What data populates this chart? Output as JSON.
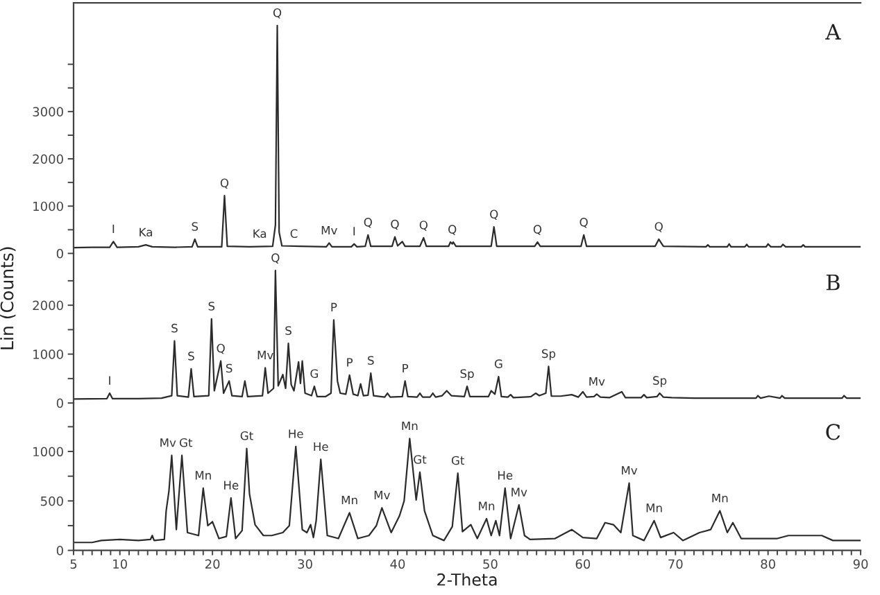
{
  "chart_data": [
    {
      "type": "line",
      "title": "A",
      "tick_labels": "y",
      "xlim": [
        5,
        90
      ],
      "ylim": [
        0,
        5300
      ],
      "yticks": [
        0,
        {
          "value": 500,
          "label": null
        },
        1000,
        {
          "value": 1500,
          "label": null
        },
        2000,
        {
          "value": 2500,
          "label": null
        },
        3000,
        {
          "value": 3500,
          "label": null
        },
        {
          "value": 4000,
          "label": null
        }
      ],
      "x": [
        5.0,
        7.0,
        8.9,
        9.3,
        9.7,
        12.0,
        12.8,
        13.5,
        16.0,
        17.8,
        18.1,
        18.4,
        20.0,
        21.0,
        21.3,
        21.6,
        24.0,
        26.5,
        26.8,
        27.0,
        27.2,
        27.5,
        29.5,
        32.3,
        32.6,
        32.9,
        35.0,
        35.3,
        35.6,
        36.5,
        36.8,
        37.1,
        39.4,
        39.7,
        40.0,
        40.5,
        40.8,
        42.4,
        42.8,
        43.1,
        45.5,
        45.7,
        45.9,
        46.0,
        46.3,
        50.1,
        50.4,
        50.7,
        54.8,
        55.1,
        55.4,
        59.8,
        60.1,
        60.4,
        67.8,
        68.1,
        68.2,
        68.4,
        68.7,
        73.3,
        73.5,
        73.7,
        75.6,
        75.8,
        76.0,
        77.5,
        77.7,
        77.9,
        79.8,
        80.0,
        80.3,
        81.4,
        81.6,
        81.9,
        83.6,
        83.8,
        84.0,
        90.0
      ],
      "series": [
        {
          "color": "#2b2b2b",
          "values": [
            120,
            130,
            130,
            250,
            130,
            140,
            180,
            140,
            130,
            140,
            300,
            140,
            140,
            140,
            1220,
            150,
            140,
            150,
            600,
            4820,
            450,
            160,
            150,
            140,
            220,
            140,
            140,
            200,
            140,
            150,
            390,
            150,
            150,
            350,
            160,
            250,
            150,
            150,
            330,
            150,
            150,
            240,
            200,
            240,
            150,
            150,
            560,
            150,
            150,
            240,
            150,
            150,
            390,
            150,
            150,
            260,
            300,
            240,
            150,
            140,
            180,
            140,
            140,
            200,
            140,
            140,
            190,
            140,
            140,
            200,
            140,
            140,
            190,
            140,
            140,
            180,
            140,
            140
          ]
        }
      ],
      "annotations": [
        {
          "text": "I",
          "x": 9.3,
          "y": 250
        },
        {
          "text": "Ka",
          "x": 12.8,
          "y": 180
        },
        {
          "text": "S",
          "x": 18.1,
          "y": 300
        },
        {
          "text": "Q",
          "x": 21.3,
          "y": 1220
        },
        {
          "text": "Ka",
          "x": 25.1,
          "y": 150
        },
        {
          "text": "Q",
          "x": 27.0,
          "y": 4820
        },
        {
          "text": "C",
          "x": 28.8,
          "y": 150
        },
        {
          "text": "Mv",
          "x": 32.6,
          "y": 220
        },
        {
          "text": "I",
          "x": 35.3,
          "y": 200
        },
        {
          "text": "Q",
          "x": 36.8,
          "y": 390
        },
        {
          "text": "Q",
          "x": 39.7,
          "y": 350
        },
        {
          "text": "Q",
          "x": 42.8,
          "y": 330
        },
        {
          "text": "Q",
          "x": 45.9,
          "y": 240
        },
        {
          "text": "Q",
          "x": 50.4,
          "y": 560
        },
        {
          "text": "Q",
          "x": 55.1,
          "y": 240
        },
        {
          "text": "Q",
          "x": 60.1,
          "y": 390
        },
        {
          "text": "Q",
          "x": 68.2,
          "y": 300
        }
      ]
    },
    {
      "type": "line",
      "title": "B",
      "ylabel": "Lin (Counts)",
      "tick_labels": "y",
      "xlim": [
        5,
        90
      ],
      "ylim": [
        0,
        3060
      ],
      "yticks": [
        0,
        {
          "value": 500,
          "label": null
        },
        1000,
        {
          "value": 1500,
          "label": null
        },
        2000,
        {
          "value": 2500,
          "label": null
        }
      ],
      "x": [
        5.0,
        8.6,
        8.9,
        9.2,
        12.0,
        14.5,
        15.6,
        15.9,
        16.2,
        17.4,
        17.7,
        18.0,
        19.6,
        19.9,
        20.2,
        20.9,
        21.2,
        21.8,
        22.1,
        23.2,
        23.5,
        23.8,
        25.4,
        25.7,
        26.0,
        26.6,
        26.8,
        27.1,
        27.6,
        27.9,
        28.2,
        28.5,
        28.8,
        29.3,
        29.5,
        29.7,
        30.0,
        30.7,
        31.0,
        31.3,
        32.2,
        32.8,
        33.1,
        33.5,
        33.8,
        34.4,
        34.8,
        35.2,
        35.7,
        36.0,
        36.3,
        36.8,
        37.1,
        37.4,
        38.6,
        38.9,
        39.2,
        40.5,
        40.8,
        41.1,
        42.1,
        42.4,
        42.7,
        43.5,
        43.8,
        44.1,
        44.8,
        45.3,
        45.8,
        47.2,
        47.5,
        47.8,
        49.8,
        50.1,
        50.5,
        50.9,
        51.2,
        51.9,
        52.2,
        52.5,
        54.4,
        54.9,
        55.3,
        56.0,
        56.3,
        56.6,
        57.6,
        58.8,
        59.5,
        60.0,
        60.4,
        61.2,
        61.5,
        61.9,
        62.9,
        64.2,
        64.6,
        66.3,
        66.6,
        66.9,
        68.0,
        68.3,
        68.7,
        69.6,
        72.0,
        78.7,
        78.9,
        79.2,
        80.1,
        81.3,
        81.5,
        81.8,
        88.0,
        88.2,
        88.5,
        90.0
      ],
      "series": [
        {
          "color": "#2b2b2b",
          "values": [
            80,
            90,
            200,
            90,
            90,
            100,
            150,
            1270,
            150,
            120,
            700,
            130,
            150,
            1720,
            250,
            860,
            200,
            450,
            150,
            130,
            450,
            130,
            150,
            720,
            200,
            300,
            2710,
            350,
            580,
            300,
            1220,
            380,
            250,
            840,
            400,
            860,
            200,
            150,
            340,
            130,
            130,
            200,
            1700,
            450,
            200,
            180,
            570,
            180,
            150,
            390,
            150,
            160,
            610,
            150,
            120,
            200,
            120,
            130,
            450,
            130,
            120,
            200,
            120,
            120,
            200,
            120,
            150,
            250,
            150,
            130,
            340,
            130,
            130,
            250,
            180,
            540,
            130,
            120,
            170,
            110,
            130,
            200,
            150,
            200,
            750,
            140,
            140,
            170,
            120,
            230,
            120,
            130,
            180,
            120,
            110,
            230,
            110,
            110,
            170,
            110,
            130,
            200,
            120,
            110,
            100,
            100,
            150,
            100,
            140,
            100,
            150,
            100,
            100,
            150,
            100,
            100
          ]
        }
      ],
      "annotations": [
        {
          "text": "I",
          "x": 8.9,
          "y": 200
        },
        {
          "text": "S",
          "x": 15.9,
          "y": 1270
        },
        {
          "text": "S",
          "x": 17.7,
          "y": 700
        },
        {
          "text": "S",
          "x": 19.9,
          "y": 1720
        },
        {
          "text": "Q",
          "x": 20.9,
          "y": 860
        },
        {
          "text": "S",
          "x": 21.8,
          "y": 450
        },
        {
          "text": "Mv",
          "x": 25.7,
          "y": 720
        },
        {
          "text": "Q",
          "x": 26.8,
          "y": 2710
        },
        {
          "text": "S",
          "x": 28.2,
          "y": 1220
        },
        {
          "text": "G",
          "x": 31.0,
          "y": 340
        },
        {
          "text": "P",
          "x": 33.1,
          "y": 1700
        },
        {
          "text": "P",
          "x": 34.8,
          "y": 570
        },
        {
          "text": "S",
          "x": 37.1,
          "y": 610
        },
        {
          "text": "P",
          "x": 40.8,
          "y": 450
        },
        {
          "text": "Sp",
          "x": 47.5,
          "y": 340
        },
        {
          "text": "G",
          "x": 50.9,
          "y": 540
        },
        {
          "text": "Sp",
          "x": 56.3,
          "y": 750
        },
        {
          "text": "Mv",
          "x": 61.5,
          "y": 180
        },
        {
          "text": "Sp",
          "x": 68.3,
          "y": 200
        }
      ]
    },
    {
      "type": "line",
      "title": "C",
      "xlabel": "2-Theta",
      "xlim": [
        5,
        90
      ],
      "ylim": [
        0,
        1490
      ],
      "xticks": [
        5,
        {
          "value": 6,
          "label": null
        },
        {
          "value": 7,
          "label": null
        },
        {
          "value": 8,
          "label": null
        },
        {
          "value": 9,
          "label": null
        },
        10,
        {
          "value": 11,
          "label": null
        },
        {
          "value": 12,
          "label": null
        },
        {
          "value": 13,
          "label": null
        },
        {
          "value": 14,
          "label": null
        },
        {
          "value": 15,
          "label": null
        },
        {
          "value": 16,
          "label": null
        },
        {
          "value": 17,
          "label": null
        },
        {
          "value": 18,
          "label": null
        },
        {
          "value": 19,
          "label": null
        },
        20,
        {
          "value": 21,
          "label": null
        },
        {
          "value": 22,
          "label": null
        },
        {
          "value": 23,
          "label": null
        },
        {
          "value": 24,
          "label": null
        },
        {
          "value": 25,
          "label": null
        },
        {
          "value": 26,
          "label": null
        },
        {
          "value": 27,
          "label": null
        },
        {
          "value": 28,
          "label": null
        },
        {
          "value": 29,
          "label": null
        },
        30,
        {
          "value": 31,
          "label": null
        },
        {
          "value": 32,
          "label": null
        },
        {
          "value": 33,
          "label": null
        },
        {
          "value": 34,
          "label": null
        },
        {
          "value": 35,
          "label": null
        },
        {
          "value": 36,
          "label": null
        },
        {
          "value": 37,
          "label": null
        },
        {
          "value": 38,
          "label": null
        },
        {
          "value": 39,
          "label": null
        },
        40,
        {
          "value": 41,
          "label": null
        },
        {
          "value": 42,
          "label": null
        },
        {
          "value": 43,
          "label": null
        },
        {
          "value": 44,
          "label": null
        },
        {
          "value": 45,
          "label": null
        },
        {
          "value": 46,
          "label": null
        },
        {
          "value": 47,
          "label": null
        },
        {
          "value": 48,
          "label": null
        },
        {
          "value": 49,
          "label": null
        },
        50,
        {
          "value": 51,
          "label": null
        },
        {
          "value": 52,
          "label": null
        },
        {
          "value": 53,
          "label": null
        },
        {
          "value": 54,
          "label": null
        },
        {
          "value": 55,
          "label": null
        },
        {
          "value": 56,
          "label": null
        },
        {
          "value": 57,
          "label": null
        },
        {
          "value": 58,
          "label": null
        },
        {
          "value": 59,
          "label": null
        },
        60,
        {
          "value": 61,
          "label": null
        },
        {
          "value": 62,
          "label": null
        },
        {
          "value": 63,
          "label": null
        },
        {
          "value": 64,
          "label": null
        },
        {
          "value": 65,
          "label": null
        },
        {
          "value": 66,
          "label": null
        },
        {
          "value": 67,
          "label": null
        },
        {
          "value": 68,
          "label": null
        },
        {
          "value": 69,
          "label": null
        },
        70,
        {
          "value": 71,
          "label": null
        },
        {
          "value": 72,
          "label": null
        },
        {
          "value": 73,
          "label": null
        },
        {
          "value": 74,
          "label": null
        },
        {
          "value": 75,
          "label": null
        },
        {
          "value": 76,
          "label": null
        },
        {
          "value": 77,
          "label": null
        },
        {
          "value": 78,
          "label": null
        },
        {
          "value": 79,
          "label": null
        },
        80,
        {
          "value": 81,
          "label": null
        },
        {
          "value": 82,
          "label": null
        },
        {
          "value": 83,
          "label": null
        },
        {
          "value": 84,
          "label": null
        },
        {
          "value": 85,
          "label": null
        },
        {
          "value": 86,
          "label": null
        },
        {
          "value": 87,
          "label": null
        },
        {
          "value": 88,
          "label": null
        },
        {
          "value": 89,
          "label": null
        },
        90
      ],
      "yticks": [
        0,
        {
          "value": 250,
          "label": null
        },
        500,
        {
          "value": 750,
          "label": null
        },
        1000,
        {
          "value": 1250,
          "label": null
        }
      ],
      "x": [
        5.0,
        7.0,
        8.0,
        10.0,
        12.0,
        13.3,
        13.5,
        13.7,
        14.8,
        15.0,
        15.3,
        15.6,
        16.1,
        16.7,
        17.3,
        18.5,
        19.0,
        19.5,
        20.0,
        20.7,
        21.5,
        22.0,
        22.5,
        23.2,
        23.7,
        24.0,
        24.6,
        25.5,
        26.4,
        27.6,
        28.3,
        29.0,
        29.7,
        30.2,
        30.6,
        30.9,
        31.2,
        31.7,
        32.4,
        33.6,
        34.8,
        35.7,
        36.9,
        37.7,
        38.3,
        39.3,
        40.2,
        40.7,
        41.3,
        42.0,
        42.4,
        42.9,
        43.8,
        45.0,
        45.9,
        46.5,
        47.0,
        47.9,
        48.6,
        49.6,
        50.1,
        50.6,
        51.0,
        51.6,
        52.2,
        53.1,
        53.7,
        54.3,
        57.0,
        58.8,
        60.0,
        61.5,
        62.4,
        63.3,
        64.1,
        65.0,
        65.4,
        66.6,
        67.7,
        68.4,
        69.8,
        70.8,
        72.6,
        73.8,
        74.8,
        75.6,
        76.2,
        77.1,
        81.0,
        82.2,
        85.8,
        87.0,
        90.0
      ],
      "series": [
        {
          "color": "#2b2b2b",
          "values": [
            80,
            80,
            100,
            110,
            100,
            110,
            150,
            100,
            110,
            400,
            600,
            960,
            210,
            960,
            180,
            150,
            630,
            250,
            290,
            120,
            140,
            530,
            120,
            200,
            1030,
            570,
            260,
            150,
            150,
            180,
            250,
            1050,
            210,
            180,
            260,
            130,
            300,
            920,
            150,
            120,
            380,
            120,
            150,
            250,
            430,
            180,
            350,
            500,
            1130,
            510,
            790,
            400,
            150,
            100,
            240,
            780,
            190,
            260,
            120,
            320,
            150,
            300,
            150,
            630,
            120,
            460,
            150,
            110,
            120,
            210,
            130,
            120,
            280,
            260,
            180,
            680,
            150,
            100,
            300,
            130,
            180,
            100,
            180,
            210,
            400,
            180,
            280,
            120,
            120,
            150,
            150,
            100,
            100
          ]
        }
      ],
      "annotations": [
        {
          "text": "Mv",
          "x": 15.6,
          "y": 960
        },
        {
          "text": "Gt",
          "x": 16.7,
          "y": 960
        },
        {
          "text": "Mn",
          "x": 19.0,
          "y": 630
        },
        {
          "text": "He",
          "x": 22.0,
          "y": 530
        },
        {
          "text": "Gt",
          "x": 23.7,
          "y": 1030
        },
        {
          "text": "He",
          "x": 29.0,
          "y": 1050
        },
        {
          "text": "He",
          "x": 31.7,
          "y": 920
        },
        {
          "text": "Mn",
          "x": 34.8,
          "y": 380
        },
        {
          "text": "Mv",
          "x": 38.3,
          "y": 430
        },
        {
          "text": "Mn",
          "x": 41.3,
          "y": 1130
        },
        {
          "text": "Gt",
          "x": 42.4,
          "y": 790
        },
        {
          "text": "Gt",
          "x": 46.5,
          "y": 780
        },
        {
          "text": "Mn",
          "x": 49.6,
          "y": 320
        },
        {
          "text": "He",
          "x": 51.6,
          "y": 630
        },
        {
          "text": "Mv",
          "x": 53.1,
          "y": 460
        },
        {
          "text": "Mv",
          "x": 65.0,
          "y": 680
        },
        {
          "text": "Mn",
          "x": 67.7,
          "y": 300
        },
        {
          "text": "Mn",
          "x": 74.8,
          "y": 400
        }
      ]
    }
  ]
}
